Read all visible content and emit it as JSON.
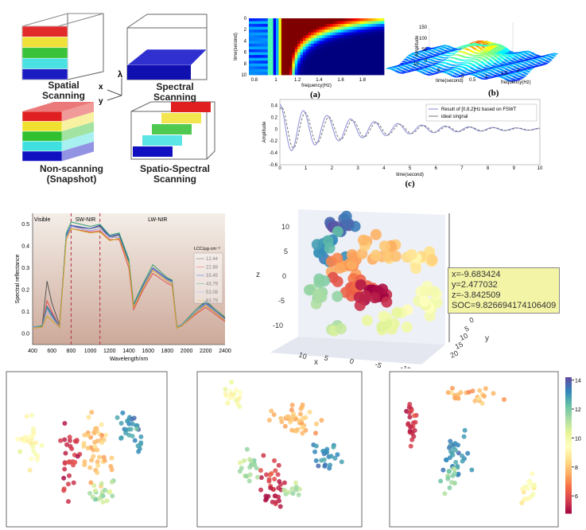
{
  "diagram": {
    "labels": [
      "Spatial\nScanning",
      "Spectral\nScanning",
      "Non-scanning\n(Snapshot)",
      "Spatio-Spectral\nScanning"
    ],
    "axis_labels": {
      "x": "x",
      "y": "y",
      "lambda": "λ"
    },
    "band_colors": [
      "#e02020",
      "#f0e030",
      "#30c030",
      "#40e0e0",
      "#1010c0"
    ]
  },
  "chart_data": [
    {
      "id": "a",
      "type": "heatmap",
      "caption": "(a)",
      "xlabel": "frequency(Hz)",
      "ylabel": "time(second)",
      "xlim": [
        0.75,
        2.0
      ],
      "ylim": [
        0,
        10
      ],
      "xticks": [
        "0.8",
        "1",
        "1.2",
        "1.4",
        "1.6",
        "1.8"
      ],
      "yticks": [
        "0",
        "2",
        "4",
        "6",
        "8",
        "10"
      ],
      "peak_frequency": 1.1
    },
    {
      "id": "b",
      "type": "surface",
      "caption": "(b)",
      "xlabel": "frequency(Hz)",
      "ylabel": "time(second)",
      "zlabel": "Amplitude",
      "xticks": [
        "0.5",
        "1",
        "1.5",
        "2"
      ],
      "yticks": [
        "0",
        "5",
        "10"
      ],
      "zticks": [
        "0",
        "50",
        "100",
        "150"
      ]
    },
    {
      "id": "c",
      "type": "line",
      "caption": "(c)",
      "xlabel": "time(second)",
      "ylabel": "Amplitude",
      "xlim": [
        0,
        10
      ],
      "ylim": [
        -0.6,
        0.5
      ],
      "xticks": [
        "0",
        "1",
        "2",
        "3",
        "4",
        "5",
        "6",
        "7",
        "8",
        "9",
        "10"
      ],
      "yticks": [
        "0.4",
        "0.2",
        "0",
        "-0.2",
        "-0.4",
        "-0.6"
      ],
      "series": [
        {
          "name": "Result of [0.8,2]Hz based on FSWT",
          "color": "#8a8ad8",
          "amplitude": 0.42,
          "frequency_hz": 1.1,
          "decay": 0.33
        },
        {
          "name": "ideal singnal",
          "color": "#777777",
          "amplitude": 0.38,
          "frequency_hz": 1.1,
          "decay": 0.33
        }
      ]
    },
    {
      "id": "spectral",
      "type": "line",
      "xlabel": "Wavelength/nm",
      "ylabel": "Spectral reflectance",
      "xlim": [
        400,
        2400
      ],
      "ylim": [
        -0.05,
        0.55
      ],
      "xticks": [
        "400",
        "600",
        "800",
        "1000",
        "1200",
        "1400",
        "1600",
        "1800",
        "2000",
        "2200",
        "2400"
      ],
      "yticks": [
        "0.0",
        "0.1",
        "0.2",
        "0.3",
        "0.4",
        "0.5"
      ],
      "regions": [
        "Visible",
        "SW-NIR",
        "LW-NIR"
      ],
      "region_bounds": [
        800,
        1100
      ],
      "legend_title": "LCC/μg·cm⁻²",
      "x": [
        400,
        500,
        550,
        600,
        680,
        750,
        800,
        1000,
        1100,
        1200,
        1300,
        1400,
        1450,
        1550,
        1650,
        1800,
        1850,
        1900,
        1950,
        2100,
        2200,
        2400
      ],
      "series": [
        {
          "name": "12.44",
          "color": "#555555",
          "values": [
            0.03,
            0.035,
            0.24,
            0.14,
            0.04,
            0.45,
            0.49,
            0.48,
            0.49,
            0.44,
            0.45,
            0.33,
            0.13,
            0.22,
            0.3,
            0.25,
            0.24,
            0.03,
            0.04,
            0.11,
            0.15,
            0.07
          ]
        },
        {
          "name": "22.88",
          "color": "#e05050",
          "values": [
            0.03,
            0.03,
            0.15,
            0.1,
            0.03,
            0.44,
            0.48,
            0.465,
            0.47,
            0.43,
            0.43,
            0.3,
            0.11,
            0.2,
            0.275,
            0.23,
            0.22,
            0.025,
            0.035,
            0.09,
            0.12,
            0.055
          ]
        },
        {
          "name": "33.45",
          "color": "#3050c0",
          "values": [
            0.03,
            0.035,
            0.125,
            0.09,
            0.03,
            0.45,
            0.495,
            0.48,
            0.495,
            0.445,
            0.455,
            0.33,
            0.13,
            0.22,
            0.3,
            0.25,
            0.24,
            0.03,
            0.04,
            0.1,
            0.14,
            0.065
          ]
        },
        {
          "name": "43.79",
          "color": "#30a070",
          "values": [
            0.03,
            0.035,
            0.12,
            0.08,
            0.03,
            0.46,
            0.51,
            0.49,
            0.5,
            0.45,
            0.46,
            0.34,
            0.135,
            0.23,
            0.315,
            0.255,
            0.245,
            0.03,
            0.04,
            0.11,
            0.145,
            0.075
          ]
        },
        {
          "name": "53.08",
          "color": "#9a9ae0",
          "values": [
            0.03,
            0.03,
            0.11,
            0.075,
            0.03,
            0.44,
            0.49,
            0.47,
            0.48,
            0.44,
            0.44,
            0.32,
            0.125,
            0.215,
            0.295,
            0.245,
            0.235,
            0.028,
            0.038,
            0.1,
            0.135,
            0.065
          ]
        },
        {
          "name": "63.79",
          "color": "#d0a020",
          "values": [
            0.025,
            0.03,
            0.08,
            0.06,
            0.03,
            0.43,
            0.48,
            0.46,
            0.465,
            0.425,
            0.435,
            0.32,
            0.12,
            0.21,
            0.29,
            0.24,
            0.23,
            0.025,
            0.035,
            0.095,
            0.13,
            0.06
          ]
        }
      ]
    },
    {
      "id": "scatter3d",
      "type": "scatter",
      "xlabel": "x",
      "ylabel": "y",
      "zlabel": "z",
      "xticks": [
        "10",
        "5",
        "0",
        "-5",
        "-10"
      ],
      "yticks": [
        "0",
        "5",
        "10",
        "15",
        "20"
      ],
      "zticks": [
        "10",
        "5",
        "0",
        "-5",
        "-10"
      ],
      "tooltip": [
        "x=-9.683424",
        "y=2.477032",
        "z=-3.842509",
        "SOC=9.826694174106409"
      ],
      "clusters": [
        {
          "cx": 25,
          "cy": 12,
          "sx": 10,
          "sy": 5,
          "value": 13.8,
          "n": 14
        },
        {
          "cx": 18,
          "cy": 28,
          "sx": 8,
          "sy": 8,
          "value": 13.0,
          "n": 14
        },
        {
          "cx": 30,
          "cy": 38,
          "sx": 10,
          "sy": 6,
          "value": 7.2,
          "n": 14
        },
        {
          "cx": 50,
          "cy": 30,
          "sx": 12,
          "sy": 8,
          "value": 8.0,
          "n": 16
        },
        {
          "cx": 75,
          "cy": 35,
          "sx": 10,
          "sy": 6,
          "value": 8.8,
          "n": 12
        },
        {
          "cx": 35,
          "cy": 55,
          "sx": 12,
          "sy": 6,
          "value": 6.5,
          "n": 16
        },
        {
          "cx": 48,
          "cy": 62,
          "sx": 10,
          "sy": 5,
          "value": 5.2,
          "n": 18
        },
        {
          "cx": 15,
          "cy": 60,
          "sx": 8,
          "sy": 8,
          "value": 11.5,
          "n": 12
        },
        {
          "cx": 80,
          "cy": 65,
          "sx": 8,
          "sy": 10,
          "value": 9.8,
          "n": 14
        },
        {
          "cx": 55,
          "cy": 80,
          "sx": 12,
          "sy": 6,
          "value": 10.3,
          "n": 14
        },
        {
          "cx": 25,
          "cy": 85,
          "sx": 6,
          "sy": 4,
          "value": 11.0,
          "n": 4
        }
      ]
    },
    {
      "id": "tsne-1",
      "type": "scatter",
      "clusters": [
        {
          "cx": 12,
          "cy": 45,
          "sx": 6,
          "sy": 18,
          "value": 9.5,
          "n": 30
        },
        {
          "cx": 38,
          "cy": 55,
          "sx": 5,
          "sy": 22,
          "value": 5.5,
          "n": 30
        },
        {
          "cx": 58,
          "cy": 50,
          "sx": 8,
          "sy": 22,
          "value": 8.0,
          "n": 45
        },
        {
          "cx": 80,
          "cy": 35,
          "sx": 7,
          "sy": 14,
          "value": 13.0,
          "n": 30
        },
        {
          "cx": 62,
          "cy": 78,
          "sx": 10,
          "sy": 7,
          "value": 11.2,
          "n": 20
        }
      ]
    },
    {
      "id": "tsne-2",
      "type": "scatter",
      "clusters": [
        {
          "cx": 20,
          "cy": 12,
          "sx": 6,
          "sy": 8,
          "value": 9.6,
          "n": 20
        },
        {
          "cx": 60,
          "cy": 30,
          "sx": 14,
          "sy": 8,
          "value": 8.0,
          "n": 40
        },
        {
          "cx": 45,
          "cy": 75,
          "sx": 6,
          "sy": 16,
          "value": 5.5,
          "n": 35
        },
        {
          "cx": 80,
          "cy": 55,
          "sx": 7,
          "sy": 10,
          "value": 13.2,
          "n": 25
        },
        {
          "cx": 30,
          "cy": 62,
          "sx": 6,
          "sy": 10,
          "value": 11.3,
          "n": 20
        },
        {
          "cx": 60,
          "cy": 78,
          "sx": 8,
          "sy": 6,
          "value": 11.5,
          "n": 12
        }
      ]
    },
    {
      "id": "tsne-3",
      "type": "scatter",
      "clusters": [
        {
          "cx": 10,
          "cy": 30,
          "sx": 3,
          "sy": 14,
          "value": 5.5,
          "n": 25
        },
        {
          "cx": 45,
          "cy": 12,
          "sx": 15,
          "sy": 5,
          "value": 7.8,
          "n": 25
        },
        {
          "cx": 40,
          "cy": 55,
          "sx": 8,
          "sy": 12,
          "value": 13.0,
          "n": 30
        },
        {
          "cx": 35,
          "cy": 70,
          "sx": 5,
          "sy": 8,
          "value": 11.5,
          "n": 15
        },
        {
          "cx": 85,
          "cy": 80,
          "sx": 5,
          "sy": 8,
          "value": 9.5,
          "n": 20
        }
      ]
    }
  ],
  "colorbar": {
    "ticks": [
      "14",
      "12",
      "10",
      "8",
      "6"
    ],
    "min": 4.8,
    "max": 14.2
  }
}
